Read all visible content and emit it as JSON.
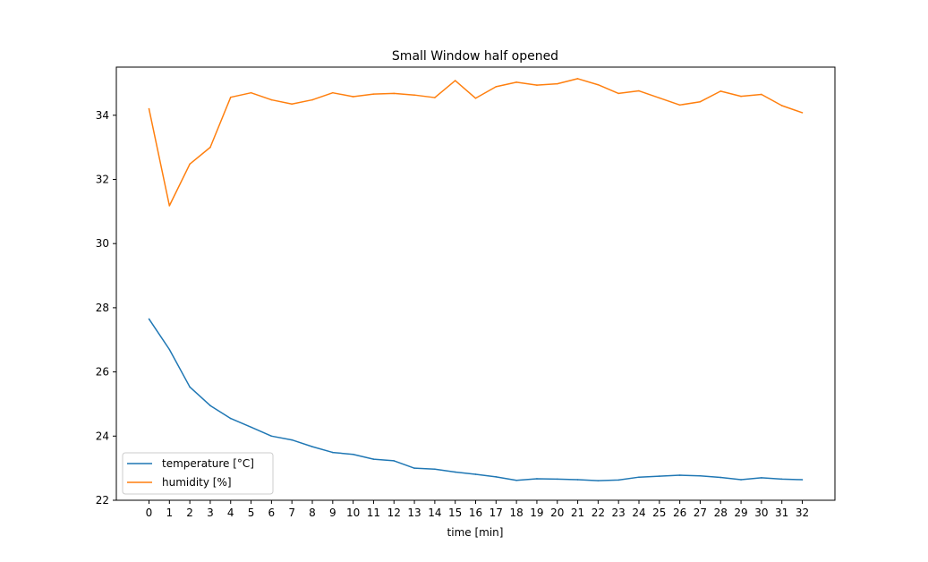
{
  "chart_data": {
    "type": "line",
    "title": "Small Window half opened",
    "xlabel": "time [min]",
    "ylabel": "",
    "x": [
      0,
      1,
      2,
      3,
      4,
      5,
      6,
      7,
      8,
      9,
      10,
      11,
      12,
      13,
      14,
      15,
      16,
      17,
      18,
      19,
      20,
      21,
      22,
      23,
      24,
      25,
      26,
      27,
      28,
      29,
      30,
      31,
      32
    ],
    "xlim": [
      -1.6,
      33.6
    ],
    "ylim": [
      22,
      35.5
    ],
    "yticks": [
      22,
      24,
      26,
      28,
      30,
      32,
      34
    ],
    "grid": false,
    "legend_position": "lower-left",
    "series": [
      {
        "name": "temperature [°C]",
        "color": "#1f77b4",
        "values": [
          27.65,
          26.7,
          25.53,
          24.95,
          24.55,
          24.28,
          24.0,
          23.88,
          23.67,
          23.49,
          23.43,
          23.28,
          23.23,
          23.0,
          22.97,
          22.88,
          22.81,
          22.73,
          22.62,
          22.67,
          22.66,
          22.64,
          22.61,
          22.63,
          22.72,
          22.75,
          22.78,
          22.76,
          22.71,
          22.64,
          22.7,
          22.66,
          22.64
        ]
      },
      {
        "name": "humidity [%]",
        "color": "#ff7f0e",
        "values": [
          34.2,
          31.18,
          32.48,
          33.0,
          34.56,
          34.7,
          34.48,
          34.35,
          34.48,
          34.7,
          34.58,
          34.66,
          34.68,
          34.63,
          34.55,
          35.08,
          34.53,
          34.89,
          35.03,
          34.94,
          34.98,
          35.14,
          34.95,
          34.68,
          34.76,
          34.54,
          34.32,
          34.42,
          34.75,
          34.59,
          34.65,
          34.3,
          34.08
        ]
      }
    ]
  }
}
